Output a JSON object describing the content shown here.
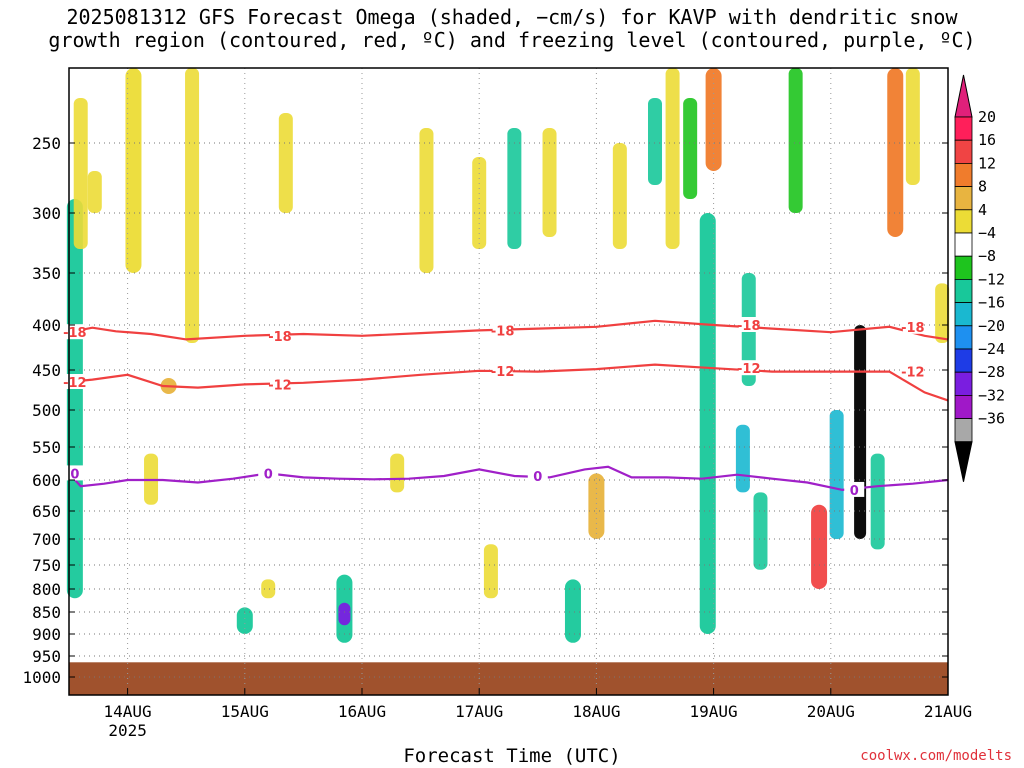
{
  "title_line1": "2025081312 GFS Forecast Omega (shaded, −cm/s) for KAVP with dendritic snow",
  "title_line2": "growth region (contoured, red, ºC) and freezing level (contoured, purple, ºC)",
  "xlabel": "Forecast Time (UTC)",
  "credit": "coolwx.com/modelts",
  "chart_data": {
    "type": "heatmap",
    "title": "2025081312 GFS Forecast Omega (shaded, −cm/s) for KAVP with dendritic snow growth region (contoured, red, ºC) and freezing level (contoured, purple, ºC)",
    "xlabel": "Forecast Time (UTC)",
    "ylabel": "",
    "x_ticks": [
      "14AUG",
      "15AUG",
      "16AUG",
      "17AUG",
      "18AUG",
      "19AUG",
      "20AUG",
      "21AUG"
    ],
    "x_tick_sub": "2025",
    "xlim_days": [
      13.5,
      21.0
    ],
    "y_ticks": [
      250,
      300,
      350,
      400,
      450,
      500,
      550,
      600,
      650,
      700,
      750,
      800,
      850,
      900,
      950,
      1000
    ],
    "ylim_hpa": [
      200,
      1000
    ],
    "grid": true,
    "colorbar": {
      "labels": [
        "20",
        "16",
        "12",
        "8",
        "4",
        "−4",
        "−8",
        "−12",
        "−16",
        "−20",
        "−24",
        "−28",
        "−32",
        "−36"
      ],
      "colors": [
        "#ff1f5a",
        "#f04444",
        "#f07c2c",
        "#e8b440",
        "#ecdc36",
        "#ffffff",
        "#1ec41e",
        "#18c89a",
        "#1ab8d0",
        "#1e90f0",
        "#1e3ce6",
        "#7a1ee0",
        "#a018c8",
        "#a8a8a8",
        "#000000"
      ],
      "top_arrow": "#e0207a",
      "bottom_arrow": "#000000"
    },
    "contours": [
      {
        "name": "-18",
        "color": "#f04040",
        "day": [
          13.5,
          13.7,
          13.9,
          14.2,
          14.5,
          15.0,
          15.5,
          16.0,
          16.5,
          17.0,
          17.5,
          18.0,
          18.5,
          19.0,
          19.5,
          20.0,
          20.5,
          20.8,
          21.0
        ],
        "hpa": [
          408,
          403,
          407,
          410,
          416,
          412,
          410,
          412,
          409,
          406,
          404,
          402,
          396,
          400,
          404,
          408,
          402,
          412,
          416
        ]
      },
      {
        "name": "-12",
        "color": "#f04040",
        "day": [
          13.5,
          13.7,
          14.0,
          14.3,
          14.6,
          15.0,
          15.5,
          16.0,
          16.5,
          17.0,
          17.5,
          18.0,
          18.5,
          19.0,
          19.5,
          20.0,
          20.5,
          20.8,
          21.0
        ],
        "hpa": [
          465,
          462,
          456,
          470,
          472,
          468,
          466,
          462,
          456,
          451,
          452,
          449,
          444,
          448,
          452,
          452,
          452,
          478,
          488
        ]
      },
      {
        "name": "0",
        "color": "#a020c8",
        "day": [
          13.5,
          13.6,
          13.8,
          14.0,
          14.3,
          14.6,
          14.9,
          15.2,
          15.5,
          15.8,
          16.1,
          16.4,
          16.7,
          17.0,
          17.3,
          17.6,
          17.9,
          18.1,
          18.3,
          18.6,
          18.9,
          19.2,
          19.5,
          19.8,
          20.1,
          20.4,
          20.7,
          21.0
        ],
        "hpa": [
          590,
          610,
          606,
          600,
          600,
          604,
          598,
          590,
          596,
          598,
          599,
          598,
          594,
          584,
          594,
          596,
          584,
          580,
          596,
          596,
          598,
          592,
          598,
          604,
          616,
          610,
          606,
          600
        ]
      }
    ],
    "shaded_regions": [
      {
        "day": 13.55,
        "p_top": 290,
        "p_bot": 820,
        "value": -8
      },
      {
        "day": 14.05,
        "p_top": 200,
        "p_bot": 350,
        "value": 4
      },
      {
        "day": 14.35,
        "p_top": 460,
        "p_bot": 480,
        "value": 8
      },
      {
        "day": 15.0,
        "p_top": 840,
        "p_bot": 900,
        "value": -8
      },
      {
        "day": 15.85,
        "p_top": 770,
        "p_bot": 920,
        "value": -8
      },
      {
        "day": 15.85,
        "p_top": 830,
        "p_bot": 880,
        "value": -24
      },
      {
        "day": 17.8,
        "p_top": 780,
        "p_bot": 920,
        "value": -8
      },
      {
        "day": 18.0,
        "p_top": 590,
        "p_bot": 700,
        "value": 8
      },
      {
        "day": 18.95,
        "p_top": 300,
        "p_bot": 900,
        "value": -8
      },
      {
        "day": 19.0,
        "p_top": 200,
        "p_bot": 270,
        "value": 12
      },
      {
        "day": 19.9,
        "p_top": 640,
        "p_bot": 800,
        "value": 16
      },
      {
        "day": 20.25,
        "p_top": 400,
        "p_bot": 700,
        "value": -36
      },
      {
        "day": 20.55,
        "p_top": 200,
        "p_bot": 320,
        "value": 12
      }
    ],
    "surface_pressure_hpa": 965
  }
}
